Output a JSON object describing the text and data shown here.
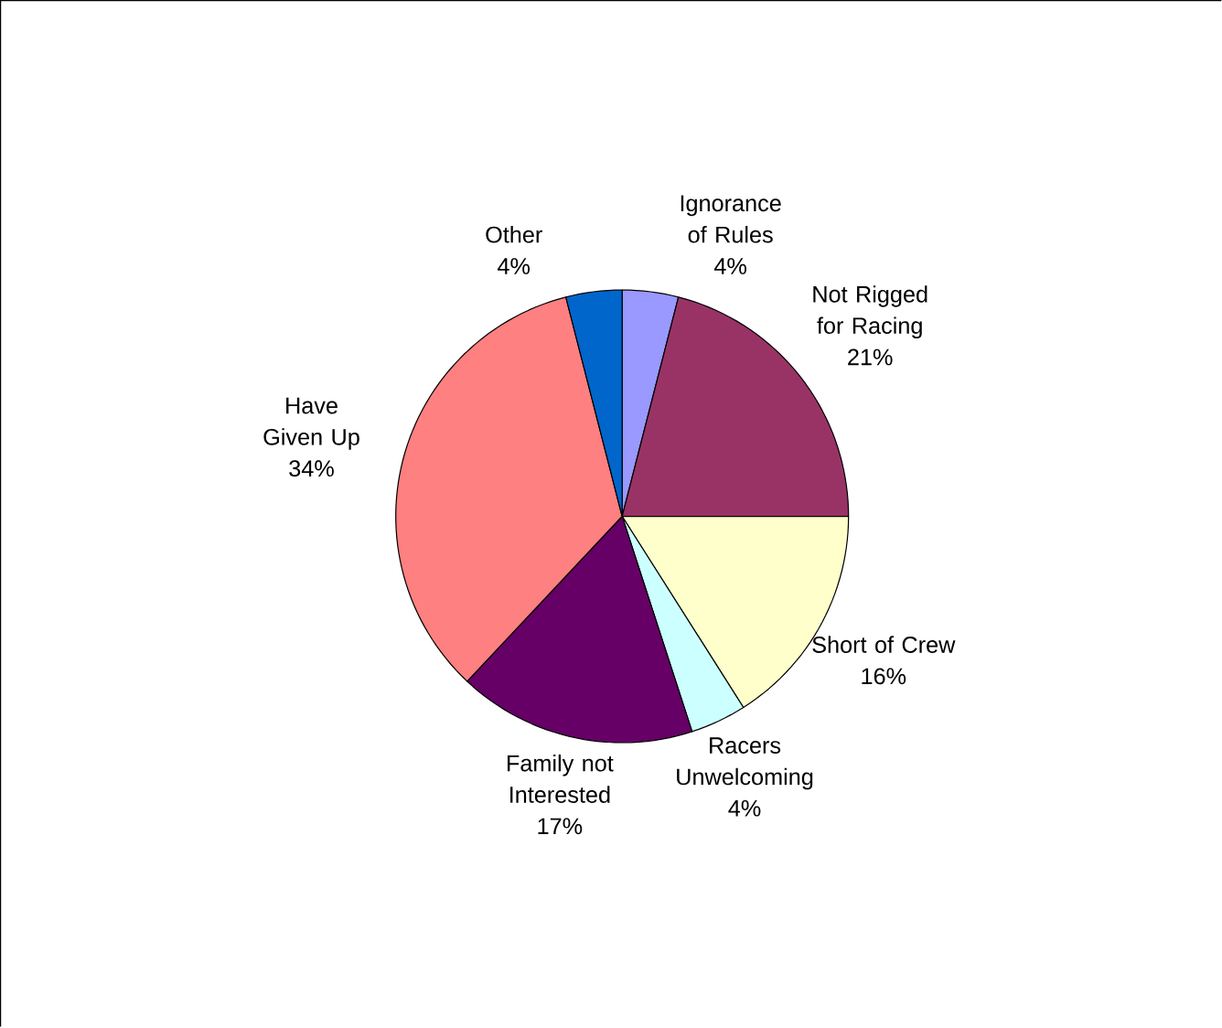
{
  "chart_data": {
    "type": "pie",
    "categories": [
      "Ignorance of Rules",
      "Not Rigged for Racing",
      "Short of Crew",
      "Racers Unwelcoming",
      "Family not Interested",
      "Have Given Up",
      "Other"
    ],
    "values": [
      4,
      21,
      16,
      4,
      17,
      34,
      4
    ],
    "value_labels": [
      "4%",
      "21%",
      "16%",
      "4%",
      "17%",
      "34%",
      "4%"
    ],
    "colors": [
      "#9999ff",
      "#993366",
      "#ffffcc",
      "#ccffff",
      "#660066",
      "#ff8080",
      "#0066cc"
    ]
  }
}
